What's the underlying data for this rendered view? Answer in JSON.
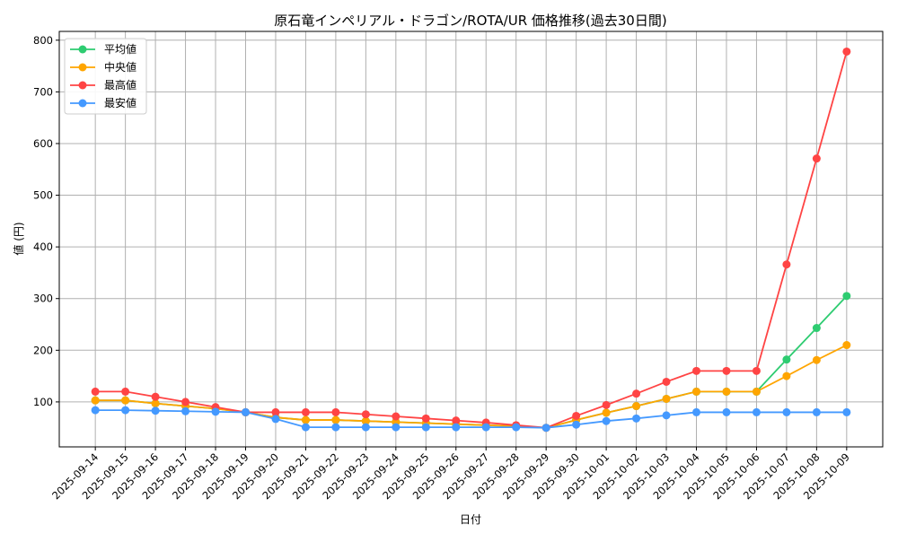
{
  "chart_data": {
    "type": "line",
    "title": "原石竜インペリアル・ドラゴン/ROTA/UR 価格推移(過去30日間)",
    "xlabel": "日付",
    "ylabel": "値 (円)",
    "ylim": [
      13,
      817
    ],
    "yticks": [
      100,
      200,
      300,
      400,
      500,
      600,
      700,
      800
    ],
    "grid": true,
    "legend_position": "top-left",
    "x": [
      "2025-09-14",
      "2025-09-15",
      "2025-09-16",
      "2025-09-17",
      "2025-09-18",
      "2025-09-19",
      "2025-09-20",
      "2025-09-21",
      "2025-09-22",
      "2025-09-23",
      "2025-09-24",
      "2025-09-25",
      "2025-09-26",
      "2025-09-27",
      "2025-09-28",
      "2025-09-29",
      "2025-09-30",
      "2025-10-01",
      "2025-10-02",
      "2025-10-03",
      "2025-10-04",
      "2025-10-05",
      "2025-10-06",
      "2025-10-07",
      "2025-10-08",
      "2025-10-09"
    ],
    "series": [
      {
        "name": "平均値",
        "color": "#2ecc71",
        "values": [
          103,
          103,
          97,
          92,
          87,
          80,
          70,
          65,
          65,
          63,
          61,
          59,
          57,
          55,
          53,
          50,
          65,
          79,
          92,
          106,
          120,
          120,
          120,
          182,
          243,
          305
        ]
      },
      {
        "name": "中央値",
        "color": "#ffa500",
        "values": [
          103,
          103,
          97,
          92,
          87,
          80,
          70,
          65,
          65,
          63,
          61,
          59,
          57,
          55,
          53,
          50,
          65,
          79,
          92,
          106,
          120,
          120,
          120,
          150,
          181,
          210
        ]
      },
      {
        "name": "最高値",
        "color": "#ff4444",
        "values": [
          120,
          120,
          110,
          100,
          90,
          80,
          80,
          80,
          80,
          76,
          72,
          68,
          64,
          60,
          55,
          50,
          73,
          94,
          116,
          139,
          160,
          160,
          160,
          366,
          571,
          778
        ]
      },
      {
        "name": "最安値",
        "color": "#4499ff",
        "values": [
          84,
          84,
          83,
          82,
          81,
          80,
          67,
          51,
          51,
          51,
          51,
          51,
          51,
          51,
          51,
          50,
          56,
          63,
          68,
          74,
          80,
          80,
          80,
          80,
          80,
          80
        ]
      }
    ]
  }
}
